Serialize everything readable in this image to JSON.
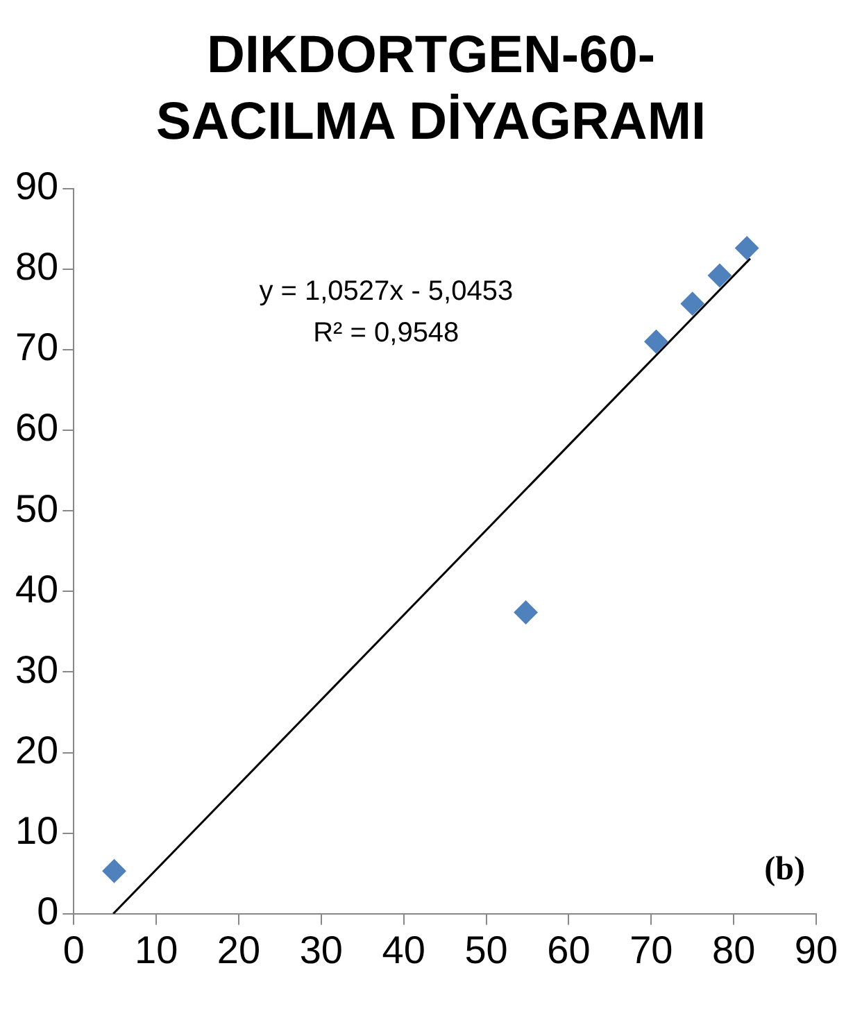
{
  "chart_data": {
    "type": "scatter",
    "title": "DIKDORTGEN-60- SACILMA DİYAGRAMI",
    "series": [
      {
        "color": "#4f81bd",
        "marker": "diamond",
        "x": [
          4.9,
          54.8,
          70.6,
          75,
          78.3,
          81.6
        ],
        "values": [
          5.3,
          37.4,
          71,
          75.7,
          79.2,
          82.6
        ]
      },
      {
        "type": "line",
        "color": "#000000",
        "marker": "none",
        "x": [
          4.79,
          82
        ],
        "values": [
          0,
          81.3
        ]
      }
    ],
    "xlim": [
      0,
      90
    ],
    "xticks": [
      0,
      10,
      20,
      30,
      40,
      50,
      60,
      70,
      80,
      90
    ],
    "ylim": [
      0,
      90
    ],
    "yticks": [
      0,
      10,
      20,
      30,
      40,
      50,
      60,
      70,
      80,
      90
    ],
    "grid": false,
    "legend": false,
    "annotations": [
      "y = 1,0527x - 5,0453",
      "R² = 0,9548",
      "(b)"
    ]
  }
}
